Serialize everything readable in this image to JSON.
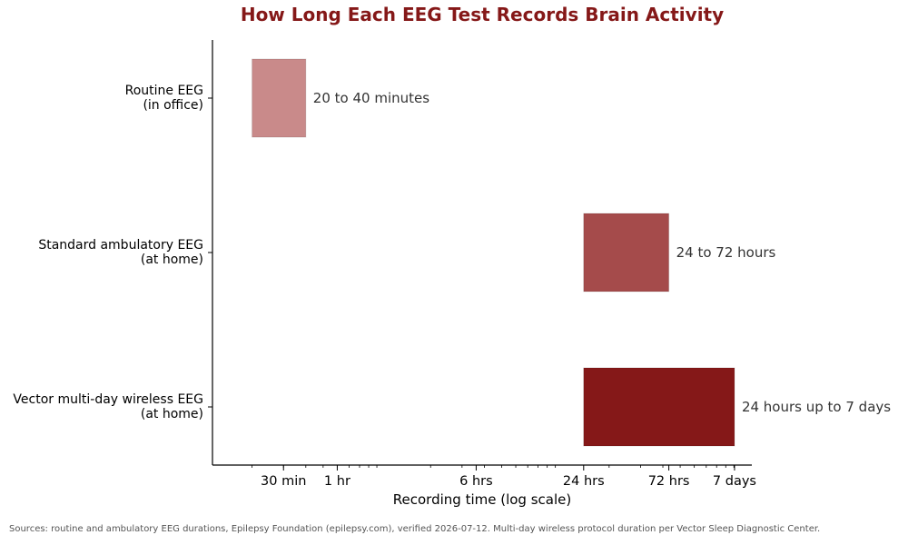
{
  "chart_data": {
    "type": "bar",
    "orientation": "horizontal",
    "title": "How Long Each EEG Test Records Brain Activity",
    "xlabel": "Recording time (log scale)",
    "ylabel": "",
    "x_scale": "log",
    "x_unit": "minutes",
    "xlim": [
      12,
      12600
    ],
    "x_ticks": [
      {
        "value": 30,
        "label": "30 min"
      },
      {
        "value": 60,
        "label": "1 hr"
      },
      {
        "value": 360,
        "label": "6 hrs"
      },
      {
        "value": 1440,
        "label": "24 hrs"
      },
      {
        "value": 4320,
        "label": "72 hrs"
      },
      {
        "value": 10080,
        "label": "7 days"
      }
    ],
    "grid": false,
    "categories": [
      [
        "Routine EEG",
        "(in office)"
      ],
      [
        "Standard ambulatory EEG",
        "(at home)"
      ],
      [
        "Vector multi-day wireless EEG",
        "(at home)"
      ]
    ],
    "bars": [
      {
        "start": 20,
        "end": 40,
        "label": "20 to 40 minutes",
        "color": "#c98a8a"
      },
      {
        "start": 1440,
        "end": 4320,
        "label": "24 to 72 hours",
        "color": "#a54b4b"
      },
      {
        "start": 1440,
        "end": 10080,
        "label": "24 hours up to 7 days",
        "color": "#851818"
      }
    ],
    "title_color": "#851818"
  },
  "source_note": "Sources: routine and ambulatory EEG durations, Epilepsy Foundation (epilepsy.com), verified 2026-07-12. Multi-day wireless protocol duration per Vector Sleep Diagnostic Center."
}
